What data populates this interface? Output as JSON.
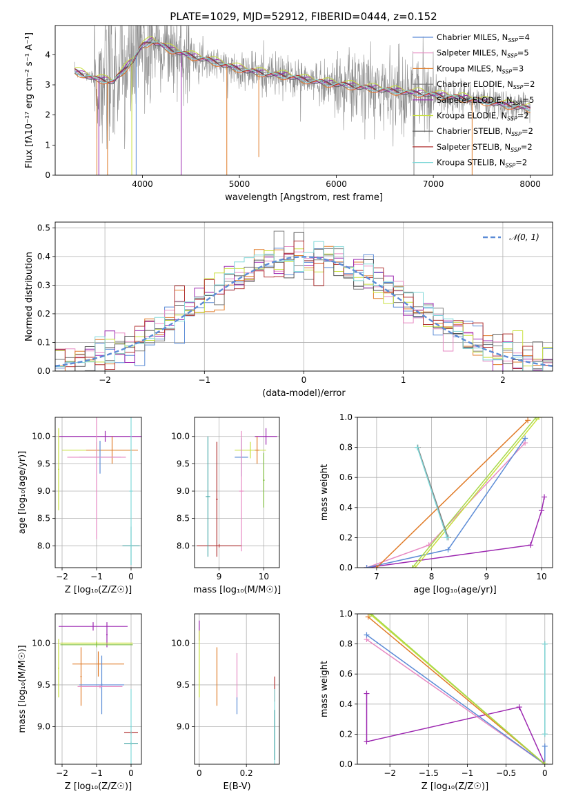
{
  "figure": {
    "title": "PLATE=1029, MJD=52912, FIBERID=0444, z=0.152"
  },
  "chart_data": [
    {
      "id": "spectrum",
      "type": "line",
      "xlabel": "wavelength [Angstrom, rest frame]",
      "ylabel": "Flux [fλ10⁻¹⁷ erg cm⁻² s⁻¹ A⁻¹]",
      "xlim": [
        3100,
        8230
      ],
      "ylim": [
        0,
        4.97
      ],
      "xticks": [
        4000,
        5000,
        6000,
        7000,
        8000
      ],
      "yticks": [
        0,
        1,
        2,
        3,
        4
      ],
      "legend_position": "upper-right",
      "data_points_note": "observed spectrum shown as noisy grey trace",
      "legend": [
        {
          "label": "Chabrier MILES, N_SSP=4",
          "color": "#5b8bd6"
        },
        {
          "label": "Salpeter MILES, N_SSP=5",
          "color": "#e78ac3"
        },
        {
          "label": "Kroupa MILES, N_SSP=3",
          "color": "#e07b28"
        },
        {
          "label": "Chabrier ELODIE, N_SSP=2",
          "color": "#7f7f7f"
        },
        {
          "label": "Salpeter ELODIE, N_SSP=5",
          "color": "#9c27b0"
        },
        {
          "label": "Kroupa ELODIE, N_SSP=2",
          "color": "#c8e03c"
        },
        {
          "label": "Chabrier STELIB, N_SSP=2",
          "color": "#555555"
        },
        {
          "label": "Salpeter STELIB, N_SSP=2",
          "color": "#b03030"
        },
        {
          "label": "Kroupa STELIB, N_SSP=2",
          "color": "#80d8d8"
        }
      ],
      "model_continuum": {
        "x": [
          3300,
          3500,
          3700,
          3900,
          4000,
          4100,
          4300,
          4500,
          4700,
          4900,
          5100,
          5300,
          5500,
          5700,
          5900,
          6100,
          6300,
          6500,
          6700,
          6900,
          7100,
          7300,
          7500,
          7700,
          7900,
          8000
        ],
        "y": [
          3.45,
          3.2,
          3.1,
          3.8,
          4.3,
          4.45,
          4.15,
          3.95,
          3.8,
          3.6,
          3.45,
          3.35,
          3.28,
          3.15,
          3.05,
          2.98,
          2.9,
          2.82,
          2.75,
          2.7,
          2.62,
          2.55,
          2.45,
          2.35,
          2.25,
          2.2
        ]
      }
    },
    {
      "id": "residuals",
      "type": "histogram",
      "xlabel": "(data-model)/error",
      "ylabel": "Normed distribution",
      "xlim": [
        -2.5,
        2.5
      ],
      "ylim": [
        0,
        0.52
      ],
      "xticks": [
        -2,
        -1,
        0,
        1,
        2
      ],
      "yticks": [
        0.0,
        0.1,
        0.2,
        0.3,
        0.4,
        0.5
      ],
      "legend": [
        {
          "label": "𝒩(0, 1)",
          "color": "#5b8bd6",
          "style": "dashed"
        }
      ],
      "reference_curve": "normal(0,1) pdf"
    },
    {
      "id": "age_vs_Z",
      "type": "errorbar",
      "xlabel": "Z [log₁₀(Z/Z☉)]",
      "ylabel": "age  [log₁₀(age/yr)]",
      "xlim": [
        -2.2,
        0.3
      ],
      "ylim": [
        7.6,
        10.35
      ],
      "xticks": [
        -2,
        -1,
        0
      ],
      "yticks": [
        8.0,
        8.5,
        9.0,
        9.5,
        10.0
      ],
      "points": [
        {
          "x": -0.75,
          "xerr": 1.35,
          "y": 10.0,
          "yerr": 0.1,
          "color": "#9c27b0"
        },
        {
          "x": -1.0,
          "xerr": 1.0,
          "y": 9.75,
          "yerr": 0.15,
          "color": "#c8e03c"
        },
        {
          "x": -0.55,
          "xerr": 0.75,
          "y": 9.75,
          "yerr": 0.25,
          "color": "#e07b28"
        },
        {
          "x": -0.9,
          "xerr": 0.6,
          "y": 9.62,
          "yerr": 0.3,
          "color": "#5b8bd6"
        },
        {
          "x": -1.0,
          "xerr": 0.85,
          "y": 9.62,
          "yerr": 1.5,
          "color": "#e78ac3"
        },
        {
          "x": 0.0,
          "xerr": 0.25,
          "y": 8.0,
          "yerr": 0.35,
          "color": "#4aa8a8"
        },
        {
          "x": 0.0,
          "xerr": 0.05,
          "y": 9.0,
          "yerr": 1.35,
          "color": "#80d8d8"
        },
        {
          "x": -2.1,
          "xerr": 0.02,
          "y": 9.4,
          "yerr": 0.75,
          "color": "#c8e03c"
        }
      ]
    },
    {
      "id": "age_vs_mass",
      "type": "errorbar",
      "xlabel": "mass [log₁₀(M/M☉)]",
      "ylabel": "",
      "xlim": [
        8.45,
        10.35
      ],
      "ylim": [
        7.6,
        10.35
      ],
      "xticks": [
        9,
        10
      ],
      "yticks": [
        8.0,
        8.5,
        9.0,
        9.5,
        10.0
      ],
      "points": [
        {
          "x": 10.05,
          "xerr": 0.25,
          "y": 10.0,
          "yerr": 0.15,
          "color": "#9c27b0"
        },
        {
          "x": 9.7,
          "xerr": 0.35,
          "y": 9.75,
          "yerr": 0.15,
          "color": "#c8e03c"
        },
        {
          "x": 9.85,
          "xerr": 0.05,
          "y": 9.75,
          "yerr": 0.25,
          "color": "#e07b28"
        },
        {
          "x": 9.5,
          "xerr": 0.15,
          "y": 9.62,
          "yerr": 0.35,
          "color": "#5b8bd6"
        },
        {
          "x": 9.5,
          "xerr": 0.05,
          "y": 9.0,
          "yerr": 1.1,
          "color": "#e78ac3"
        },
        {
          "x": 9.0,
          "xerr": 0.5,
          "y": 8.0,
          "yerr": 0.03,
          "color": "#b03030"
        },
        {
          "x": 8.75,
          "xerr": 0.05,
          "y": 8.9,
          "yerr": 1.1,
          "color": "#4aa8a8"
        },
        {
          "x": 8.95,
          "xerr": 0.02,
          "y": 8.85,
          "yerr": 1.05,
          "color": "#b03030"
        },
        {
          "x": 10.0,
          "xerr": 0.02,
          "y": 9.2,
          "yerr": 0.5,
          "color": "#7fbf3f"
        }
      ]
    },
    {
      "id": "massweight_vs_age",
      "type": "line",
      "xlabel": "age  [log₁₀(age/yr)]",
      "ylabel": "mass weight",
      "xlim": [
        6.65,
        10.2
      ],
      "ylim": [
        0,
        1.0
      ],
      "xticks": [
        7,
        8,
        9,
        10
      ],
      "yticks": [
        0.0,
        0.2,
        0.4,
        0.6,
        0.8,
        1.0
      ],
      "series": [
        {
          "color": "#9c27b0",
          "x": [
            6.82,
            9.8,
            10.0,
            10.05
          ],
          "y": [
            0.0,
            0.15,
            0.38,
            0.47
          ]
        },
        {
          "color": "#e78ac3",
          "x": [
            6.82,
            7.95,
            9.7
          ],
          "y": [
            0.0,
            0.15,
            0.83
          ]
        },
        {
          "color": "#5b8bd6",
          "x": [
            6.82,
            8.3,
            9.7
          ],
          "y": [
            0.0,
            0.12,
            0.86
          ]
        },
        {
          "color": "#e07b28",
          "x": [
            7.0,
            9.75
          ],
          "y": [
            0.0,
            0.98
          ]
        },
        {
          "color": "#c8e03c",
          "x": [
            7.7,
            9.95
          ],
          "y": [
            0.0,
            1.0
          ]
        },
        {
          "color": "#a6d84a",
          "x": [
            7.65,
            9.9
          ],
          "y": [
            0.0,
            1.0
          ]
        },
        {
          "color": "#7f7f7f",
          "x": [
            7.75,
            8.3
          ],
          "y": [
            0.8,
            0.2
          ]
        },
        {
          "color": "#80d8d8",
          "x": [
            7.74,
            8.28
          ],
          "y": [
            0.8,
            0.2
          ]
        }
      ]
    },
    {
      "id": "mass_vs_Z",
      "type": "errorbar",
      "xlabel": "Z [log₁₀(Z/Z☉)]",
      "ylabel": "mass [log₁₀(M/M☉)]",
      "xlim": [
        -2.2,
        0.3
      ],
      "ylim": [
        8.55,
        10.35
      ],
      "xticks": [
        -2,
        -1,
        0
      ],
      "yticks": [
        9.0,
        9.5,
        10.0
      ],
      "points": [
        {
          "x": -1.1,
          "xerr": 1.0,
          "y": 10.2,
          "yerr": 0.05,
          "color": "#9c27b0"
        },
        {
          "x": -0.7,
          "xerr": 0.02,
          "y": 10.1,
          "yerr": 0.15,
          "color": "#9c27b0"
        },
        {
          "x": -1.0,
          "xerr": 1.05,
          "y": 10.0,
          "yerr": 0.03,
          "color": "#c8e03c"
        },
        {
          "x": -1.0,
          "xerr": 1.05,
          "y": 9.98,
          "yerr": 0.03,
          "color": "#7fbf3f"
        },
        {
          "x": -0.95,
          "xerr": 0.75,
          "y": 9.75,
          "yerr": 0.15,
          "color": "#e07b28"
        },
        {
          "x": -1.45,
          "xerr": 0.02,
          "y": 9.6,
          "yerr": 0.35,
          "color": "#e07b28"
        },
        {
          "x": -0.85,
          "xerr": 0.65,
          "y": 9.5,
          "yerr": 0.02,
          "color": "#5b8bd6"
        },
        {
          "x": -0.85,
          "xerr": 0.02,
          "y": 9.5,
          "yerr": 0.35,
          "color": "#5b8bd6"
        },
        {
          "x": -0.9,
          "xerr": 0.65,
          "y": 9.48,
          "yerr": 0.02,
          "color": "#e78ac3"
        },
        {
          "x": 0.0,
          "xerr": 0.2,
          "y": 8.93,
          "yerr": 0.02,
          "color": "#b03030"
        },
        {
          "x": 0.0,
          "xerr": 0.2,
          "y": 8.8,
          "yerr": 0.02,
          "color": "#4aa8a8"
        },
        {
          "x": 0.0,
          "xerr": 0.02,
          "y": 9.0,
          "yerr": 0.45,
          "color": "#80d8d8"
        },
        {
          "x": -2.1,
          "xerr": 0.02,
          "y": 9.7,
          "yerr": 0.35,
          "color": "#c8e03c"
        }
      ]
    },
    {
      "id": "mass_vs_EBV",
      "type": "errorbar",
      "xlabel": "E(B-V)",
      "ylabel": "",
      "xlim": [
        -0.02,
        0.34
      ],
      "ylim": [
        8.55,
        10.35
      ],
      "xticks": [
        0.0,
        0.2
      ],
      "yticks": [
        9.0,
        9.5,
        10.0
      ],
      "points": [
        {
          "x": 0.0,
          "xerr": 0.0,
          "y": 10.15,
          "yerr": 0.12,
          "color": "#9c27b0"
        },
        {
          "x": 0.0,
          "xerr": 0.0,
          "y": 9.75,
          "yerr": 0.4,
          "color": "#c8e03c"
        },
        {
          "x": 0.075,
          "xerr": 0.0,
          "y": 9.6,
          "yerr": 0.35,
          "color": "#e07b28"
        },
        {
          "x": 0.16,
          "xerr": 0.0,
          "y": 9.6,
          "yerr": 0.28,
          "color": "#e78ac3"
        },
        {
          "x": 0.16,
          "xerr": 0.0,
          "y": 9.25,
          "yerr": 0.1,
          "color": "#5b8bd6"
        },
        {
          "x": 0.32,
          "xerr": 0.0,
          "y": 9.45,
          "yerr": 0.15,
          "color": "#b03030"
        },
        {
          "x": 0.32,
          "xerr": 0.0,
          "y": 9.0,
          "yerr": 0.45,
          "color": "#80d8d8"
        },
        {
          "x": 0.32,
          "xerr": 0.0,
          "y": 8.9,
          "yerr": 0.3,
          "color": "#4aa8a8"
        }
      ]
    },
    {
      "id": "massweight_vs_Z",
      "type": "line",
      "xlabel": "Z [log₁₀(Z/Z☉)]",
      "ylabel": "mass weight",
      "xlim": [
        -2.42,
        0.1
      ],
      "ylim": [
        0,
        1.0
      ],
      "xticks": [
        -2.0,
        -1.5,
        -1.0,
        -0.5,
        0.0
      ],
      "yticks": [
        0.0,
        0.2,
        0.4,
        0.6,
        0.8,
        1.0
      ],
      "series": [
        {
          "color": "#9c27b0",
          "x": [
            -2.3,
            -2.3,
            -0.33,
            0.0
          ],
          "y": [
            0.47,
            0.15,
            0.38,
            0.0
          ]
        },
        {
          "color": "#e78ac3",
          "x": [
            -2.3,
            0.0
          ],
          "y": [
            0.83,
            0.0
          ]
        },
        {
          "color": "#5b8bd6",
          "x": [
            -2.3,
            0.0,
            0.0
          ],
          "y": [
            0.86,
            0.0,
            0.12
          ]
        },
        {
          "color": "#e07b28",
          "x": [
            -2.28,
            0.0
          ],
          "y": [
            0.98,
            0.0
          ]
        },
        {
          "color": "#c8e03c",
          "x": [
            -2.26,
            0.0
          ],
          "y": [
            1.0,
            0.0
          ]
        },
        {
          "color": "#a6d84a",
          "x": [
            -2.24,
            0.0
          ],
          "y": [
            1.0,
            0.0
          ]
        },
        {
          "color": "#7f7f7f",
          "x": [
            0.0,
            0.0
          ],
          "y": [
            0.8,
            0.2
          ]
        },
        {
          "color": "#80d8d8",
          "x": [
            0.0,
            0.0
          ],
          "y": [
            0.8,
            0.2
          ]
        }
      ]
    }
  ]
}
